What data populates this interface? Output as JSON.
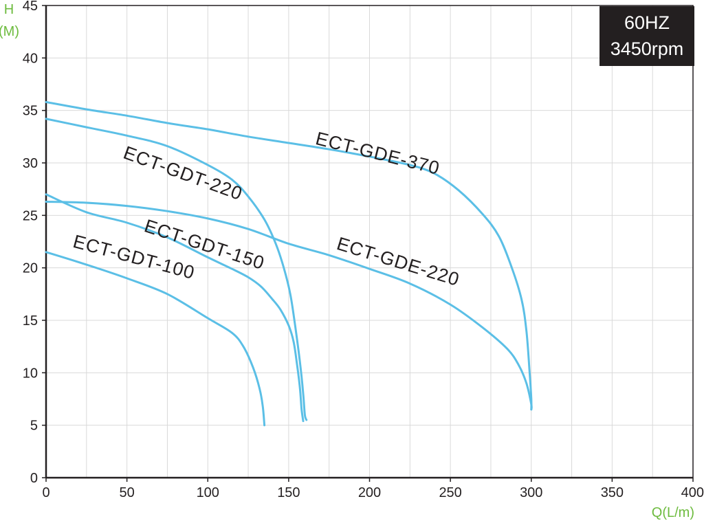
{
  "chart_data": {
    "type": "line",
    "title": "",
    "badge": {
      "line1": "60HZ",
      "line2": "3450rpm",
      "bg_color": "#231f20"
    },
    "xlabel": "Q(L/m)",
    "ylabel_line1": "H",
    "ylabel_line2": "(M)",
    "xlim": [
      0,
      400
    ],
    "ylim": [
      0,
      45
    ],
    "xticks": [
      0,
      50,
      100,
      150,
      200,
      250,
      300,
      350,
      400
    ],
    "yticks": [
      0,
      5,
      10,
      15,
      20,
      25,
      30,
      35,
      40,
      45
    ],
    "grid": true,
    "line_color": "#5bbfe6",
    "axis_label_color": "#6dbb3e",
    "series": [
      {
        "name": "ECT-GDT-100",
        "points": [
          [
            0,
            21.5
          ],
          [
            25,
            20.3
          ],
          [
            50,
            19.0
          ],
          [
            75,
            17.5
          ],
          [
            100,
            15.2
          ],
          [
            115,
            13.8
          ],
          [
            122,
            12.5
          ],
          [
            128,
            10.5
          ],
          [
            132,
            8.5
          ],
          [
            134,
            6.8
          ],
          [
            135,
            5.0
          ]
        ]
      },
      {
        "name": "ECT-GDT-150",
        "points": [
          [
            0,
            27.0
          ],
          [
            25,
            25.3
          ],
          [
            50,
            24.3
          ],
          [
            75,
            22.9
          ],
          [
            100,
            21.0
          ],
          [
            115,
            19.9
          ],
          [
            125,
            19.1
          ],
          [
            133,
            18.2
          ],
          [
            140,
            17.0
          ],
          [
            145,
            16.0
          ],
          [
            150,
            14.5
          ],
          [
            153,
            13.0
          ],
          [
            155,
            11.0
          ],
          [
            157,
            8.5
          ],
          [
            158,
            6.5
          ],
          [
            159,
            5.4
          ]
        ]
      },
      {
        "name": "ECT-GDT-220",
        "points": [
          [
            0,
            34.2
          ],
          [
            25,
            33.4
          ],
          [
            50,
            32.6
          ],
          [
            75,
            31.6
          ],
          [
            100,
            29.8
          ],
          [
            115,
            28.4
          ],
          [
            125,
            26.8
          ],
          [
            135,
            24.6
          ],
          [
            142,
            22.3
          ],
          [
            147,
            20.0
          ],
          [
            151,
            17.5
          ],
          [
            154,
            14.5
          ],
          [
            157,
            11.0
          ],
          [
            159,
            8.0
          ],
          [
            160,
            6.0
          ],
          [
            161,
            5.5
          ]
        ]
      },
      {
        "name": "ECT-GDE-220",
        "points": [
          [
            0,
            26.3
          ],
          [
            25,
            26.2
          ],
          [
            50,
            25.9
          ],
          [
            75,
            25.4
          ],
          [
            100,
            24.7
          ],
          [
            125,
            23.7
          ],
          [
            150,
            22.3
          ],
          [
            175,
            21.2
          ],
          [
            200,
            19.9
          ],
          [
            225,
            18.5
          ],
          [
            250,
            16.5
          ],
          [
            270,
            14.3
          ],
          [
            285,
            12.3
          ],
          [
            292,
            10.8
          ],
          [
            297,
            9.0
          ],
          [
            300,
            7.0
          ],
          [
            300,
            6.5
          ]
        ]
      },
      {
        "name": "ECT-GDE-370",
        "points": [
          [
            0,
            35.8
          ],
          [
            25,
            35.1
          ],
          [
            50,
            34.5
          ],
          [
            75,
            33.8
          ],
          [
            100,
            33.2
          ],
          [
            125,
            32.5
          ],
          [
            150,
            31.9
          ],
          [
            175,
            31.3
          ],
          [
            200,
            30.6
          ],
          [
            225,
            29.8
          ],
          [
            240,
            29.0
          ],
          [
            255,
            27.4
          ],
          [
            270,
            25.1
          ],
          [
            280,
            23.0
          ],
          [
            288,
            20.0
          ],
          [
            294,
            17.0
          ],
          [
            297,
            14.0
          ],
          [
            299,
            10.0
          ],
          [
            300,
            7.5
          ],
          [
            300,
            6.5
          ]
        ]
      }
    ],
    "labels": [
      {
        "text": "ECT-GDT-100",
        "x": 16,
        "y": 22.0,
        "angle": 15
      },
      {
        "text": "ECT-GDT-150",
        "x": 60,
        "y": 23.5,
        "angle": 18
      },
      {
        "text": "ECT-GDT-220",
        "x": 47,
        "y": 30.5,
        "angle": 20
      },
      {
        "text": "ECT-GDE-220",
        "x": 179,
        "y": 21.8,
        "angle": 17
      },
      {
        "text": "ECT-GDE-370",
        "x": 166,
        "y": 31.8,
        "angle": 14
      }
    ]
  }
}
